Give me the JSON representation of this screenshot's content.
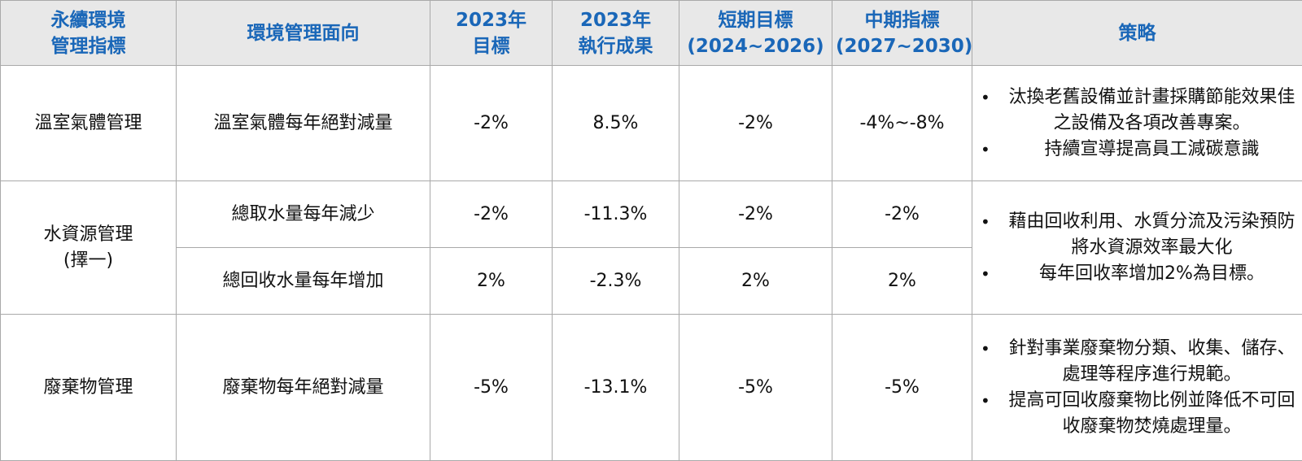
{
  "headers": {
    "indicator": [
      "永續環境",
      "管理指標"
    ],
    "aspect": "環境管理面向",
    "target_2023": [
      "2023年",
      "目標"
    ],
    "result_2023": [
      "2023年",
      "執行成果"
    ],
    "short_term": [
      "短期目標",
      "(2024~2026)"
    ],
    "mid_term": [
      "中期指標",
      "(2027~2030)"
    ],
    "strategy": "策略"
  },
  "rows": [
    {
      "indicator": [
        "溫室氣體管理"
      ],
      "aspect": "溫室氣體每年絕對減量",
      "target_2023": "-2%",
      "result_2023": "8.5%",
      "short_term": "-2%",
      "mid_term": "-4%~-8%",
      "strategy": [
        "汰換老舊設備並計畫採購節能效果佳之設備及各項改善專案。",
        "持續宣導提高員工減碳意識"
      ]
    },
    {
      "indicator": [
        "水資源管理",
        "(擇一)"
      ],
      "aspect": "總取水量每年減少",
      "target_2023": "-2%",
      "result_2023": "-11.3%",
      "short_term": "-2%",
      "mid_term": "-2%",
      "strategy": [
        "藉由回收利用、水質分流及污染預防將水資源效率最大化",
        "每年回收率增加2%為目標。"
      ]
    },
    {
      "aspect": "總回收水量每年增加",
      "target_2023": "2%",
      "result_2023": "-2.3%",
      "short_term": "2%",
      "mid_term": "2%"
    },
    {
      "indicator": [
        "廢棄物管理"
      ],
      "aspect": "廢棄物每年絕對減量",
      "target_2023": "-5%",
      "result_2023": "-13.1%",
      "short_term": "-5%",
      "mid_term": "-5%",
      "strategy": [
        "針對事業廢棄物分類、收集、儲存、處理等程序進行規範。",
        "提高可回收廢棄物比例並降低不可回收廢棄物焚燒處理量。"
      ]
    }
  ]
}
